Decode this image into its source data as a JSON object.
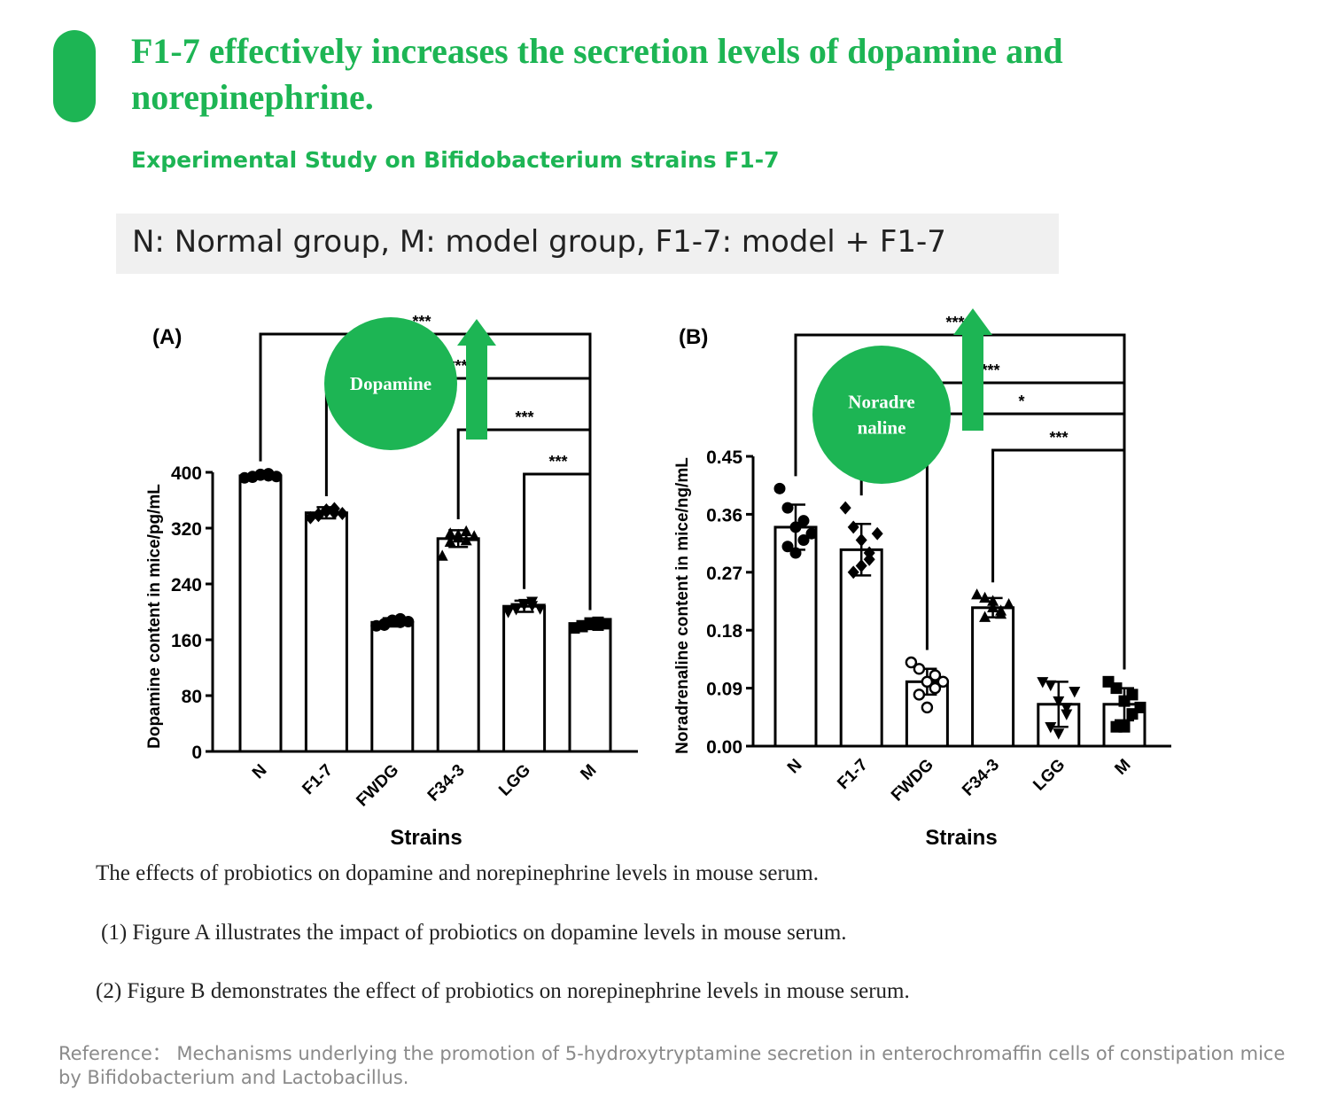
{
  "header": {
    "title": "F1-7 effectively increases the secretion levels of dopamine and norepinephrine.",
    "subtitle": "Experimental Study on Bifidobacterium strains F1-7",
    "legend": "N: Normal group, M: model group, F1-7: model + F1-7"
  },
  "colors": {
    "accent": "#1db554",
    "bar_fill": "#ffffff",
    "ink": "#000000",
    "legend_bg": "#f0f0f0"
  },
  "chart_data": [
    {
      "type": "bar",
      "panel": "(A)",
      "categories": [
        "N",
        "F1-7",
        "FWDG",
        "F34-3",
        "LGG",
        "M"
      ],
      "values": [
        395,
        342,
        185,
        305,
        208,
        181
      ],
      "errors": [
        3,
        8,
        6,
        12,
        8,
        5
      ],
      "markers": [
        "circle",
        "diamond",
        "circle",
        "triangle",
        "triangle-down",
        "square"
      ],
      "points": [
        [
          392,
          394,
          396,
          398,
          393,
          397,
          395,
          394
        ],
        [
          335,
          340,
          344,
          348,
          338,
          346,
          342,
          341
        ],
        [
          180,
          183,
          187,
          190,
          181,
          188,
          185,
          186
        ],
        [
          280,
          300,
          310,
          315,
          312,
          306,
          302,
          308
        ],
        [
          200,
          204,
          210,
          215,
          206,
          212,
          209,
          205
        ],
        [
          177,
          179,
          182,
          185,
          180,
          184,
          181,
          183
        ]
      ],
      "xlabel": "Strains",
      "ylabel": "Dopamine content in mice/pg/mL",
      "ylim": [
        0,
        400
      ],
      "yticks": [
        "0",
        "80",
        "160",
        "240",
        "320",
        "400"
      ],
      "comparisons": [
        {
          "from": "N",
          "to": "M",
          "label": "***"
        },
        {
          "from": "F1-7",
          "to": "M",
          "label": "***"
        },
        {
          "from": "F34-3",
          "to": "M",
          "label": "***"
        },
        {
          "from": "LGG",
          "to": "M",
          "label": "***"
        }
      ],
      "badge": "Dopamine"
    },
    {
      "type": "bar",
      "panel": "(B)",
      "categories": [
        "N",
        "F1-7",
        "FWDG",
        "F34-3",
        "LGG",
        "M"
      ],
      "values": [
        0.34,
        0.305,
        0.1,
        0.215,
        0.065,
        0.065
      ],
      "errors": [
        0.035,
        0.04,
        0.02,
        0.015,
        0.035,
        0.025
      ],
      "markers": [
        "circle",
        "diamond",
        "circle-open",
        "triangle",
        "triangle-down",
        "square"
      ],
      "points": [
        [
          0.4,
          0.37,
          0.34,
          0.32,
          0.31,
          0.3,
          0.35,
          0.33
        ],
        [
          0.37,
          0.34,
          0.32,
          0.3,
          0.27,
          0.28,
          0.29,
          0.33
        ],
        [
          0.13,
          0.12,
          0.1,
          0.09,
          0.08,
          0.06,
          0.11,
          0.1
        ],
        [
          0.235,
          0.23,
          0.215,
          0.205,
          0.2,
          0.225,
          0.21,
          0.22
        ],
        [
          0.1,
          0.095,
          0.07,
          0.05,
          0.03,
          0.02,
          0.06,
          0.085
        ],
        [
          0.1,
          0.09,
          0.07,
          0.05,
          0.03,
          0.03,
          0.08,
          0.06
        ]
      ],
      "xlabel": "Strains",
      "ylabel": "Noradrenaline content in mice/ng/mL",
      "ylim": [
        0,
        0.45
      ],
      "yticks": [
        "0.00",
        "0.09",
        "0.18",
        "0.27",
        "0.36",
        "0.45"
      ],
      "comparisons": [
        {
          "from": "N",
          "to": "M",
          "label": "***"
        },
        {
          "from": "F1-7",
          "to": "M",
          "label": "***"
        },
        {
          "from": "FWDG",
          "to": "M",
          "label": "*"
        },
        {
          "from": "F34-3",
          "to": "M",
          "label": "***"
        }
      ],
      "badge": "Noradre\nnaline"
    }
  ],
  "captions": {
    "main": "The effects of probiotics on dopamine and norepinephrine levels in mouse serum.",
    "a": "(1) Figure A illustrates the impact of probiotics on dopamine levels in mouse serum.",
    "b": "(2) Figure B demonstrates the effect of probiotics on norepinephrine levels in mouse serum."
  },
  "reference": "Reference： Mechanisms underlying the promotion of 5-hydroxytryptamine secretion in enterochromaffin cells of constipation mice by Bifidobacterium and Lactobacillus."
}
